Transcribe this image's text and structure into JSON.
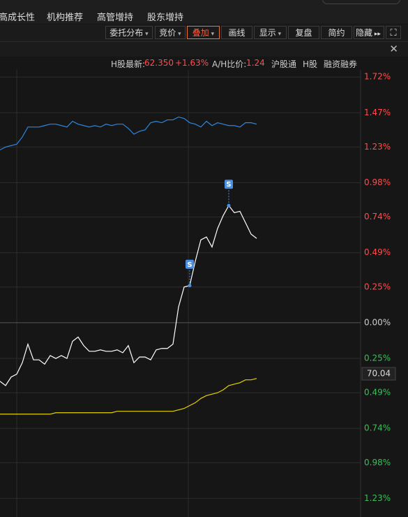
{
  "tabs": [
    "高成长性",
    "机构推荐",
    "高管增持",
    "股东增持"
  ],
  "toolbar": [
    "委托分布",
    "竞价",
    "叠加",
    "画线",
    "显示",
    "复盘",
    "简约",
    "隐藏"
  ],
  "info": {
    "h_label": "H股最新:",
    "h_price": "62.350",
    "h_change": "+1.63%",
    "ah_label": "A/H比价:",
    "ah_ratio": "1.24",
    "links": [
      "沪股通",
      "H股",
      "融资融券"
    ]
  },
  "chart_data": {
    "type": "line",
    "ylim": [
      -1.36,
      1.77
    ],
    "yticks": [
      {
        "value": 1.72,
        "label": "1.72%"
      },
      {
        "value": 1.47,
        "label": "1.47%"
      },
      {
        "value": 1.23,
        "label": "1.23%"
      },
      {
        "value": 0.98,
        "label": "0.98%"
      },
      {
        "value": 0.74,
        "label": "0.74%"
      },
      {
        "value": 0.49,
        "label": "0.49%"
      },
      {
        "value": 0.25,
        "label": "0.25%"
      },
      {
        "value": 0,
        "label": "0.00%"
      },
      {
        "value": -0.25,
        "label": "0.25%"
      },
      {
        "value": -0.49,
        "label": "0.49%"
      },
      {
        "value": -0.74,
        "label": "0.74%"
      },
      {
        "value": -0.98,
        "label": "0.98%"
      },
      {
        "value": -1.23,
        "label": "1.23%"
      }
    ],
    "grid": true,
    "series": [
      {
        "color": "#2e86de",
        "values": [
          1.21,
          1.23,
          1.24,
          1.25,
          1.3,
          1.37,
          1.37,
          1.37,
          1.38,
          1.39,
          1.39,
          1.38,
          1.37,
          1.41,
          1.39,
          1.38,
          1.37,
          1.38,
          1.37,
          1.39,
          1.38,
          1.39,
          1.39,
          1.36,
          1.32,
          1.34,
          1.35,
          1.4,
          1.41,
          1.4,
          1.42,
          1.42,
          1.44,
          1.43,
          1.4,
          1.39,
          1.37,
          1.41,
          1.38,
          1.4,
          1.39,
          1.38,
          1.38,
          1.37,
          1.4,
          1.4,
          1.39
        ]
      },
      {
        "color": "#ffffff",
        "values": [
          -0.41,
          -0.44,
          -0.38,
          -0.36,
          -0.28,
          -0.15,
          -0.26,
          -0.26,
          -0.29,
          -0.23,
          -0.25,
          -0.23,
          -0.25,
          -0.13,
          -0.1,
          -0.16,
          -0.2,
          -0.2,
          -0.19,
          -0.2,
          -0.2,
          -0.19,
          -0.21,
          -0.16,
          -0.28,
          -0.24,
          -0.24,
          -0.26,
          -0.19,
          -0.18,
          -0.18,
          -0.15,
          0.11,
          0.25,
          0.26,
          0.43,
          0.58,
          0.6,
          0.53,
          0.66,
          0.75,
          0.82,
          0.77,
          0.78,
          0.7,
          0.62,
          0.59
        ]
      },
      {
        "color": "#e5d200",
        "values": [
          -0.64,
          -0.64,
          -0.64,
          -0.64,
          -0.64,
          -0.64,
          -0.64,
          -0.64,
          -0.64,
          -0.64,
          -0.63,
          -0.63,
          -0.63,
          -0.63,
          -0.63,
          -0.63,
          -0.63,
          -0.63,
          -0.63,
          -0.63,
          -0.63,
          -0.62,
          -0.62,
          -0.62,
          -0.62,
          -0.62,
          -0.62,
          -0.62,
          -0.62,
          -0.62,
          -0.62,
          -0.62,
          -0.61,
          -0.6,
          -0.58,
          -0.56,
          -0.53,
          -0.51,
          -0.5,
          -0.49,
          -0.47,
          -0.44,
          -0.43,
          -0.42,
          -0.4,
          -0.4,
          -0.39
        ]
      }
    ],
    "signals": [
      {
        "series": 1,
        "index": 34,
        "label": "S"
      },
      {
        "series": 1,
        "index": 41,
        "label": "S"
      }
    ],
    "price_tag": "70.04"
  }
}
